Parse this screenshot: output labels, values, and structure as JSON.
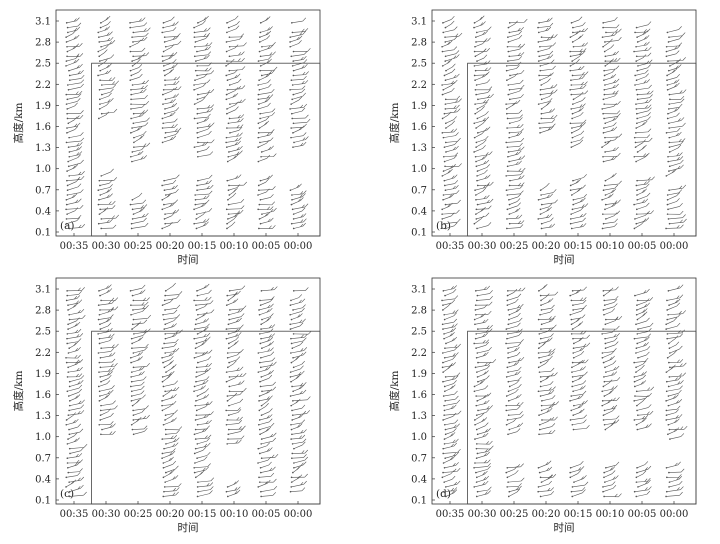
{
  "chart_data": [
    {
      "type": "wind_profile",
      "panel_label": "(a)",
      "xlabel": "时间",
      "ylabel": "高度/km",
      "x_ticks": [
        "00:35",
        "00:30",
        "00:25",
        "00:20",
        "00:15",
        "00:10",
        "00:05",
        "00:00"
      ],
      "y_ticks": [
        0.1,
        0.4,
        0.7,
        1.0,
        1.3,
        1.6,
        1.9,
        2.2,
        2.5,
        2.8,
        3.1
      ],
      "ylim": [
        0.1,
        3.25
      ],
      "inner_box": {
        "x_from": "00:30",
        "top_km": 2.5
      },
      "gaps": [
        {
          "column": "00:30",
          "from_km": 0.9,
          "to_km": 1.7
        },
        {
          "column": "00:25",
          "from_km": 0.6,
          "to_km": 1.1
        },
        {
          "column": "00:20",
          "from_km": 0.85,
          "to_km": 1.35
        },
        {
          "column": "00:15",
          "from_km": 0.85,
          "to_km": 1.15
        },
        {
          "column": "00:10",
          "from_km": 0.85,
          "to_km": 1.05
        },
        {
          "column": "00:05",
          "from_km": 0.85,
          "to_km": 1.05
        },
        {
          "column": "00:00",
          "from_km": 0.75,
          "to_km": 1.3
        }
      ],
      "wind_barbs": {
        "directions_deg": [
          215,
          225,
          230,
          240,
          250,
          265
        ]
      }
    },
    {
      "type": "wind_profile",
      "panel_label": "(b)",
      "xlabel": "时间",
      "ylabel": "高度/km",
      "x_ticks": [
        "00:35",
        "00:30",
        "00:25",
        "00:20",
        "00:15",
        "00:10",
        "00:05",
        "00:00"
      ],
      "y_ticks": [
        0.1,
        0.4,
        0.7,
        1.0,
        1.3,
        1.6,
        1.9,
        2.2,
        2.5,
        2.8,
        3.1
      ],
      "ylim": [
        0.1,
        3.25
      ],
      "inner_box": {
        "x_from": "00:30",
        "top_km": 2.5
      },
      "gaps": [
        {
          "column": "00:20",
          "from_km": 0.75,
          "to_km": 1.45
        },
        {
          "column": "00:15",
          "from_km": 0.85,
          "to_km": 1.25
        },
        {
          "column": "00:10",
          "from_km": 0.85,
          "to_km": 1.05
        },
        {
          "column": "00:05",
          "from_km": 0.85,
          "to_km": 1.05
        },
        {
          "column": "00:00",
          "from_km": 0.7,
          "to_km": 0.85
        }
      ],
      "wind_barbs": {
        "directions_deg": [
          215,
          225,
          230,
          240,
          250,
          265
        ]
      }
    },
    {
      "type": "wind_profile",
      "panel_label": "(c)",
      "xlabel": "时间",
      "ylabel": "高度/km",
      "x_ticks": [
        "00:35",
        "00:30",
        "00:25",
        "00:20",
        "00:15",
        "00:10",
        "00:05",
        "00:00"
      ],
      "y_ticks": [
        0.1,
        0.4,
        0.7,
        1.0,
        1.3,
        1.6,
        1.9,
        2.2,
        2.5,
        2.8,
        3.1
      ],
      "ylim": [
        0.1,
        3.25
      ],
      "inner_box": {
        "x_from": "00:30",
        "top_km": 2.5
      },
      "gaps": [
        {
          "column": "00:30",
          "from_km": 0.1,
          "to_km": 1.0
        },
        {
          "column": "00:25",
          "from_km": 0.1,
          "to_km": 1.0
        },
        {
          "column": "00:20",
          "from_km": 1.4,
          "to_km": 1.4
        },
        {
          "column": "00:10",
          "from_km": 0.35,
          "to_km": 0.85
        },
        {
          "column": "00:00",
          "from_km": 0.1,
          "to_km": 0.2
        }
      ],
      "wind_barbs": {
        "directions_deg": [
          215,
          225,
          230,
          240,
          250,
          265
        ]
      }
    },
    {
      "type": "wind_profile",
      "panel_label": "(d)",
      "xlabel": "时间",
      "ylabel": "高度/km",
      "x_ticks": [
        "00:35",
        "00:30",
        "00:25",
        "00:20",
        "00:15",
        "00:10",
        "00:05",
        "00:00"
      ],
      "y_ticks": [
        0.1,
        0.4,
        0.7,
        1.0,
        1.3,
        1.6,
        1.9,
        2.2,
        2.5,
        2.8,
        3.1
      ],
      "ylim": [
        0.1,
        3.25
      ],
      "inner_box": {
        "x_from": "00:30",
        "top_km": 2.5
      },
      "gaps": [
        {
          "column": "00:25",
          "from_km": 0.6,
          "to_km": 1.0
        },
        {
          "column": "00:20",
          "from_km": 0.6,
          "to_km": 1.0
        },
        {
          "column": "00:15",
          "from_km": 0.6,
          "to_km": 1.1
        },
        {
          "column": "00:10",
          "from_km": 0.6,
          "to_km": 1.1
        },
        {
          "column": "00:05",
          "from_km": 0.6,
          "to_km": 1.1
        },
        {
          "column": "00:00",
          "from_km": 0.6,
          "to_km": 0.95
        }
      ],
      "wind_barbs": {
        "directions_deg": [
          215,
          225,
          230,
          240,
          250,
          265
        ]
      }
    }
  ]
}
